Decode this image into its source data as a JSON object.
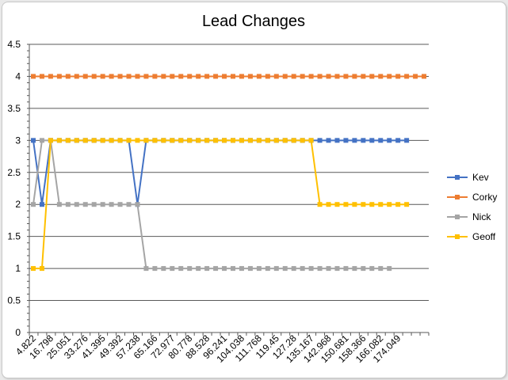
{
  "chart_data": {
    "type": "line",
    "title": "Lead Changes",
    "xlabel": "",
    "ylabel": "",
    "ylim": [
      0,
      4.5
    ],
    "yticks": [
      "0",
      "0.5",
      "1",
      "1.5",
      "2",
      "2.5",
      "3",
      "3.5",
      "4",
      "4.5"
    ],
    "grid": true,
    "legend_position": "right",
    "categories": [
      "4.822",
      "",
      "16.798",
      "",
      "25.051",
      "",
      "33.276",
      "",
      "41.395",
      "",
      "49.392",
      "",
      "57.238",
      "",
      "65.166",
      "",
      "72.977",
      "",
      "80.778",
      "",
      "88.528",
      "",
      "96.241",
      "",
      "104.038",
      "",
      "111.768",
      "",
      "119.45",
      "",
      "127.28",
      "",
      "135.167",
      "",
      "142.968",
      "",
      "150.681",
      "",
      "158.366",
      "",
      "166.082",
      "",
      "174.049",
      "",
      "",
      ""
    ],
    "series": [
      {
        "name": "Kev",
        "color": "#4472C4",
        "values": [
          3,
          2,
          3,
          3,
          3,
          3,
          3,
          3,
          3,
          3,
          3,
          3,
          2,
          3,
          3,
          3,
          3,
          3,
          3,
          3,
          3,
          3,
          3,
          3,
          3,
          3,
          3,
          3,
          3,
          3,
          3,
          3,
          3,
          3,
          3,
          3,
          3,
          3,
          3,
          3,
          3,
          3,
          3,
          3,
          null,
          null
        ]
      },
      {
        "name": "Corky",
        "color": "#ED7D31",
        "values": [
          4,
          4,
          4,
          4,
          4,
          4,
          4,
          4,
          4,
          4,
          4,
          4,
          4,
          4,
          4,
          4,
          4,
          4,
          4,
          4,
          4,
          4,
          4,
          4,
          4,
          4,
          4,
          4,
          4,
          4,
          4,
          4,
          4,
          4,
          4,
          4,
          4,
          4,
          4,
          4,
          4,
          4,
          4,
          4,
          4,
          4
        ]
      },
      {
        "name": "Nick",
        "color": "#A5A5A5",
        "values": [
          2,
          3,
          3,
          2,
          2,
          2,
          2,
          2,
          2,
          2,
          2,
          2,
          2,
          1,
          1,
          1,
          1,
          1,
          1,
          1,
          1,
          1,
          1,
          1,
          1,
          1,
          1,
          1,
          1,
          1,
          1,
          1,
          1,
          1,
          1,
          1,
          1,
          1,
          1,
          1,
          1,
          1,
          null,
          null,
          null,
          null
        ]
      },
      {
        "name": "Geoff",
        "color": "#FFC000",
        "values": [
          1,
          1,
          3,
          3,
          3,
          3,
          3,
          3,
          3,
          3,
          3,
          3,
          3,
          3,
          3,
          3,
          3,
          3,
          3,
          3,
          3,
          3,
          3,
          3,
          3,
          3,
          3,
          3,
          3,
          3,
          3,
          3,
          3,
          2,
          2,
          2,
          2,
          2,
          2,
          2,
          2,
          2,
          2,
          2,
          null,
          null
        ]
      }
    ]
  }
}
